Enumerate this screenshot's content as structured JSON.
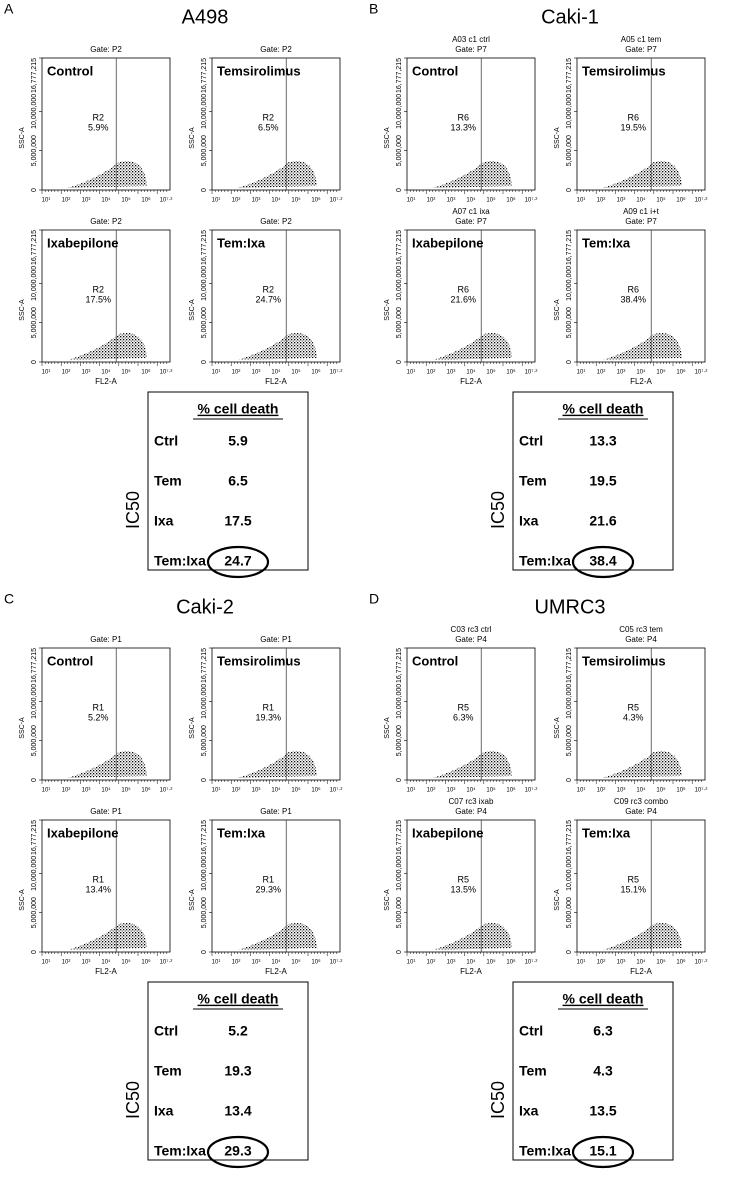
{
  "axes": {
    "y_label": "SSC-A",
    "x_label": "FL2-A",
    "ylim": [
      0,
      16777215
    ],
    "y_ticks": [
      {
        "value": 0,
        "label": "0"
      },
      {
        "value": 5000000,
        "label": "5,000,000"
      },
      {
        "value": 10000000,
        "label": "10,000,000"
      },
      {
        "value": 16777215,
        "label": "16,777,215"
      }
    ],
    "x_ticks": [
      "10¹",
      "10²",
      "10³",
      "10⁴",
      "10⁵",
      "10⁶",
      "10⁷·²"
    ]
  },
  "panels": [
    {
      "letter": "A",
      "title": "A498",
      "plots": [
        {
          "header": [
            "Gate: P2"
          ],
          "label": "Control",
          "region": "R2",
          "percent": "5.9%"
        },
        {
          "header": [
            "Gate: P2"
          ],
          "label": "Temsirolimus",
          "region": "R2",
          "percent": "6.5%"
        },
        {
          "header": [
            "Gate: P2"
          ],
          "label": "Ixabepilone",
          "region": "R2",
          "percent": "17.5%"
        },
        {
          "header": [
            "Gate: P2"
          ],
          "label": "Tem:Ixa",
          "region": "R2",
          "percent": "24.7%"
        }
      ],
      "table": {
        "header": "% cell death",
        "side_label": "IC50",
        "rows": [
          [
            "Ctrl",
            5.9
          ],
          [
            "Tem",
            6.5
          ],
          [
            "Ixa",
            17.5
          ],
          [
            "Tem:Ixa",
            24.7
          ]
        ]
      }
    },
    {
      "letter": "B",
      "title": "Caki-1",
      "plots": [
        {
          "header": [
            "A03 c1 ctrl",
            "Gate: P7"
          ],
          "label": "Control",
          "region": "R6",
          "percent": "13.3%"
        },
        {
          "header": [
            "A05 c1 tem",
            "Gate: P7"
          ],
          "label": "Temsirolimus",
          "region": "R6",
          "percent": "19.5%"
        },
        {
          "header": [
            "A07 c1 ixa",
            "Gate: P7"
          ],
          "label": "Ixabepilone",
          "region": "R6",
          "percent": "21.6%"
        },
        {
          "header": [
            "A09 c1 i+t",
            "Gate: P7"
          ],
          "label": "Tem:Ixa",
          "region": "R6",
          "percent": "38.4%"
        }
      ],
      "table": {
        "header": "% cell death",
        "side_label": "IC50",
        "rows": [
          [
            "Ctrl",
            13.3
          ],
          [
            "Tem",
            19.5
          ],
          [
            "Ixa",
            21.6
          ],
          [
            "Tem:Ixa",
            38.4
          ]
        ]
      }
    },
    {
      "letter": "C",
      "title": "Caki-2",
      "plots": [
        {
          "header": [
            "Gate: P1"
          ],
          "label": "Control",
          "region": "R1",
          "percent": "5.2%"
        },
        {
          "header": [
            "Gate: P1"
          ],
          "label": "Temsirolimus",
          "region": "R1",
          "percent": "19.3%"
        },
        {
          "header": [
            "Gate: P1"
          ],
          "label": "Ixabepilone",
          "region": "R1",
          "percent": "13.4%"
        },
        {
          "header": [
            "Gate: P1"
          ],
          "label": "Tem:Ixa",
          "region": "R1",
          "percent": "29.3%"
        }
      ],
      "table": {
        "header": "% cell death",
        "side_label": "IC50",
        "rows": [
          [
            "Ctrl",
            5.2
          ],
          [
            "Tem",
            19.3
          ],
          [
            "Ixa",
            13.4
          ],
          [
            "Tem:Ixa",
            29.3
          ]
        ]
      }
    },
    {
      "letter": "D",
      "title": "UMRC3",
      "plots": [
        {
          "header": [
            "C03 rc3 ctrl",
            "Gate: P4"
          ],
          "label": "Control",
          "region": "R5",
          "percent": "6.3%"
        },
        {
          "header": [
            "C05 rc3 tem",
            "Gate: P4"
          ],
          "label": "Temsirolimus",
          "region": "R5",
          "percent": "4.3%"
        },
        {
          "header": [
            "C07 rc3 ixab",
            "Gate: P4"
          ],
          "label": "Ixabepilone",
          "region": "R5",
          "percent": "13.5%"
        },
        {
          "header": [
            "C09 rc3 combo",
            "Gate: P4"
          ],
          "label": "Tem:Ixa",
          "region": "R5",
          "percent": "15.1%"
        }
      ],
      "table": {
        "header": "% cell death",
        "side_label": "IC50",
        "rows": [
          [
            "Ctrl",
            6.3
          ],
          [
            "Tem",
            4.3
          ],
          [
            "Ixa",
            13.5
          ],
          [
            "Tem:Ixa",
            15.1
          ]
        ]
      }
    }
  ]
}
